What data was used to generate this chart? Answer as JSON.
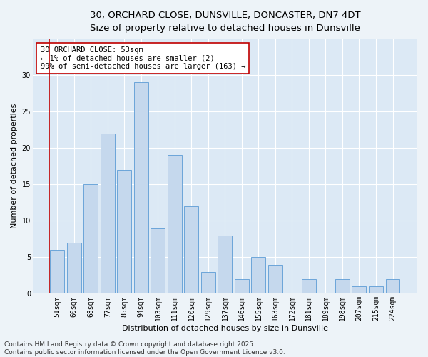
{
  "title_line1": "30, ORCHARD CLOSE, DUNSVILLE, DONCASTER, DN7 4DT",
  "title_line2": "Size of property relative to detached houses in Dunsville",
  "xlabel": "Distribution of detached houses by size in Dunsville",
  "ylabel": "Number of detached properties",
  "categories": [
    "51sqm",
    "60sqm",
    "68sqm",
    "77sqm",
    "85sqm",
    "94sqm",
    "103sqm",
    "111sqm",
    "120sqm",
    "129sqm",
    "137sqm",
    "146sqm",
    "155sqm",
    "163sqm",
    "172sqm",
    "181sqm",
    "189sqm",
    "198sqm",
    "207sqm",
    "215sqm",
    "224sqm"
  ],
  "values": [
    6,
    7,
    15,
    22,
    17,
    29,
    9,
    19,
    12,
    3,
    8,
    2,
    5,
    4,
    0,
    2,
    0,
    2,
    1,
    1,
    2
  ],
  "bar_color": "#c5d8ed",
  "bar_edge_color": "#5b9bd5",
  "highlight_edge_color": "#c00000",
  "annotation_text": "30 ORCHARD CLOSE: 53sqm\n← 1% of detached houses are smaller (2)\n99% of semi-detached houses are larger (163) →",
  "annotation_box_edge_color": "#c00000",
  "annotation_box_face_color": "#ffffff",
  "ylim": [
    0,
    35
  ],
  "yticks": [
    0,
    5,
    10,
    15,
    20,
    25,
    30
  ],
  "fig_background_color": "#edf3f8",
  "plot_background_color": "#dce9f5",
  "grid_color": "#ffffff",
  "footnote": "Contains HM Land Registry data © Crown copyright and database right 2025.\nContains public sector information licensed under the Open Government Licence v3.0.",
  "title_fontsize": 9.5,
  "subtitle_fontsize": 8.5,
  "axis_label_fontsize": 8,
  "tick_fontsize": 7,
  "annotation_fontsize": 7.5,
  "footnote_fontsize": 6.5
}
